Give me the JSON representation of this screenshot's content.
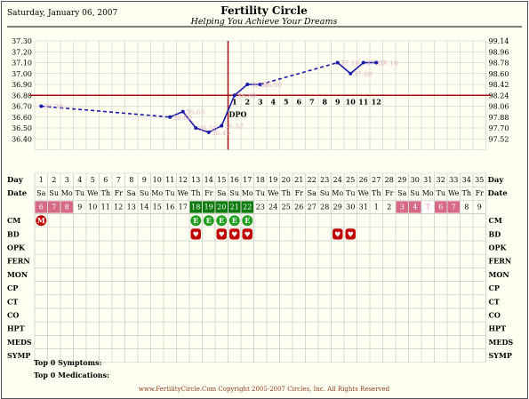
{
  "header": {
    "date": "Saturday, January 06, 2007",
    "title": "Fertility Circle",
    "subtitle": "Helping You Achieve Your Dreams"
  },
  "colors": {
    "line": "#1a1aa8",
    "coverline": "#a01010",
    "fertile_green": "#0a7a0a",
    "menses_pink": "#d66a86",
    "grid": "#c8c8c8",
    "bd_red": "#c00000"
  },
  "chart_data": {
    "type": "line",
    "x": [
      1,
      2,
      3,
      4,
      5,
      6,
      7,
      8,
      9,
      10,
      11,
      12,
      13,
      14,
      15,
      16,
      17,
      18,
      19,
      20,
      21,
      22,
      23,
      24,
      25,
      26,
      27,
      28,
      29,
      30,
      31,
      32,
      33,
      34,
      35
    ],
    "temps_c": [
      36.7,
      null,
      null,
      null,
      null,
      null,
      null,
      null,
      null,
      null,
      36.6,
      36.65,
      36.5,
      36.46,
      36.52,
      36.8,
      36.9,
      36.9,
      null,
      null,
      null,
      null,
      null,
      37.1,
      37.0,
      37.1,
      37.1,
      null,
      null,
      null,
      null,
      null,
      null,
      null,
      null
    ],
    "point_labels": [
      {
        "day": 1,
        "text": "36.70"
      },
      {
        "day": 11,
        "text": "36.60"
      },
      {
        "day": 12,
        "text": "36.65"
      },
      {
        "day": 13,
        "text": "36.50"
      },
      {
        "day": 14,
        "text": "36.46"
      },
      {
        "day": 15,
        "text": "36.52"
      },
      {
        "day": 16,
        "text": "36.80"
      },
      {
        "day": 17,
        "text": "36.90"
      },
      {
        "day": 18,
        "text": "36.90"
      },
      {
        "day": 24,
        "text": "37.10"
      },
      {
        "day": 25,
        "text": "37.00"
      },
      {
        "day": 26,
        "text": "37.10"
      },
      {
        "day": 27,
        "text": "37.10"
      }
    ],
    "ylim_c": [
      36.3,
      37.3
    ],
    "yticks_c": [
      "37.30",
      "37.20",
      "37.10",
      "37.00",
      "36.90",
      "36.80",
      "36.70",
      "36.60",
      "36.50",
      "36.40"
    ],
    "yticks_f": [
      "99.14",
      "98.96",
      "98.78",
      "98.60",
      "98.42",
      "98.24",
      "98.06",
      "97.88",
      "97.70",
      "97.52"
    ],
    "coverline_c": 36.8,
    "ovulation_day": 15,
    "ovulation_label": "DPO",
    "dpo": [
      {
        "day": 16,
        "label": "1"
      },
      {
        "day": 17,
        "label": "2"
      },
      {
        "day": 18,
        "label": "3"
      },
      {
        "day": 19,
        "label": "4"
      },
      {
        "day": 20,
        "label": "5"
      },
      {
        "day": 21,
        "label": "6"
      },
      {
        "day": 22,
        "label": "7"
      },
      {
        "day": 23,
        "label": "8"
      },
      {
        "day": 24,
        "label": "9"
      },
      {
        "day": 25,
        "label": "10"
      },
      {
        "day": 26,
        "label": "11"
      },
      {
        "day": 27,
        "label": "12"
      }
    ]
  },
  "rows": {
    "day_label": "Day",
    "date_label": "Date",
    "weekdays": [
      "Sa",
      "Su",
      "Mo",
      "Tu",
      "We",
      "Th",
      "Fr",
      "Sa",
      "Su",
      "Mo",
      "Tu",
      "We",
      "Th",
      "Fr",
      "Sa",
      "Su",
      "Mo",
      "Tu",
      "We",
      "Th",
      "Fr",
      "Sa",
      "Su",
      "Mo",
      "Tu",
      "We",
      "Th",
      "Fr",
      "Sa",
      "Su",
      "Mo",
      "Tu",
      "We",
      "Th",
      "Fr"
    ],
    "dates": [
      "6",
      "7",
      "8",
      "9",
      "10",
      "11",
      "12",
      "13",
      "14",
      "15",
      "16",
      "17",
      "18",
      "19",
      "20",
      "21",
      "22",
      "23",
      "24",
      "25",
      "26",
      "27",
      "28",
      "29",
      "30",
      "31",
      "1",
      "2",
      "3",
      "4",
      "T",
      "6",
      "7",
      "8",
      "9"
    ],
    "date_styles": [
      "m",
      "m",
      "m",
      "",
      "",
      "",
      "",
      "",
      "",
      "",
      "",
      "",
      "g",
      "g",
      "g",
      "g",
      "g",
      "",
      "",
      "",
      "",
      "",
      "",
      "",
      "",
      "",
      "",
      "",
      "m",
      "m",
      "t",
      "m",
      "m",
      "",
      ""
    ],
    "labels": [
      "CM",
      "BD",
      "OPK",
      "FERN",
      "MON",
      "CP",
      "CT",
      "CO",
      "HPT",
      "MEDS",
      "SYMP"
    ],
    "menses_marker": {
      "day": 1,
      "text": "M"
    },
    "cm_days": [
      13,
      14,
      15,
      16,
      17
    ],
    "cm_text": "E",
    "bd_days": [
      13,
      15,
      16,
      17,
      24,
      25
    ]
  },
  "footer": {
    "symptoms": "Top 0 Symptoms:",
    "medications": "Top 0 Medications:",
    "copyright": "www.FertilityCircle.Com Copyright 2005-2007 Circles, Inc. All Rights Reserved"
  }
}
